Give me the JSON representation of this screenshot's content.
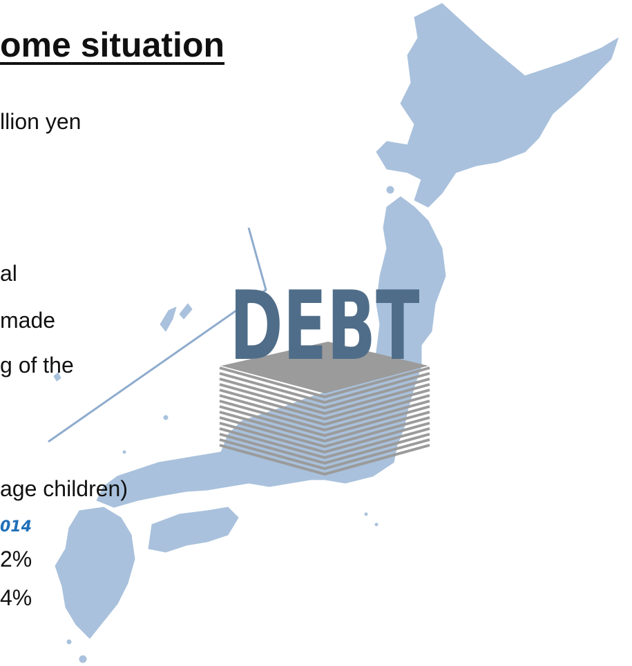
{
  "slide": {
    "title": "ome situation",
    "line_1": "llion yen",
    "line_2": "al",
    "line_3": " made",
    "line_4": "g of the",
    "line_5": "age children)",
    "year_label": "014",
    "stat_1": "2%",
    "stat_2": "4%"
  },
  "illustration": {
    "debt_label": "DEBT",
    "map_color": "#a9c1dc",
    "debt_color": "#4f6d89",
    "paper_color": "#9b9b9b"
  }
}
